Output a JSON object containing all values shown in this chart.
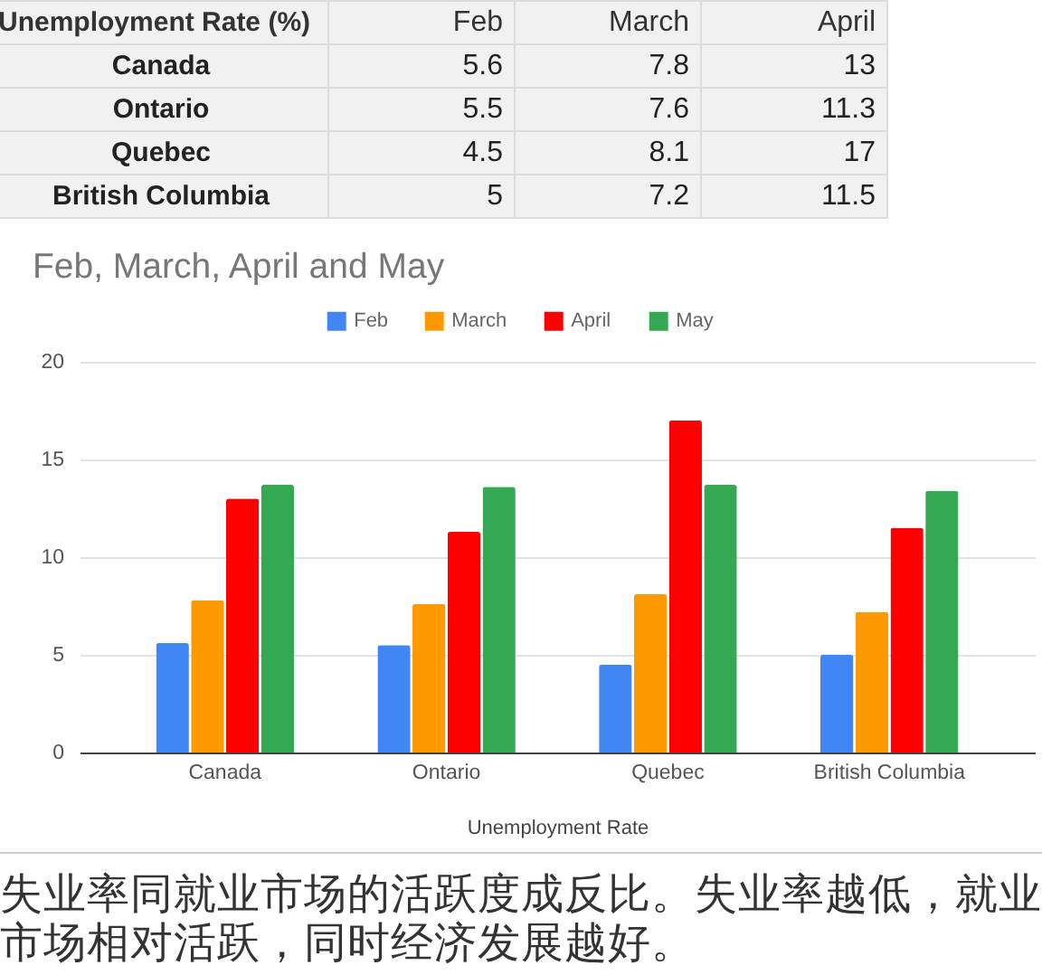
{
  "chart_data": [
    {
      "type": "other",
      "title": "Unemployment Rate (%)",
      "categories": [
        "Canada",
        "Ontario",
        "Quebec",
        "British Columbia"
      ],
      "series": [
        {
          "name": "Feb",
          "values": [
            5.6,
            5.5,
            4.5,
            5
          ]
        },
        {
          "name": "March",
          "values": [
            7.8,
            7.6,
            8.1,
            7.2
          ]
        },
        {
          "name": "April",
          "values": [
            13,
            11.3,
            17,
            11.5
          ]
        }
      ],
      "data_labels": true
    },
    {
      "type": "bar",
      "title": "Feb, March, April and May",
      "xlabel": "Unemployment Rate",
      "categories": [
        "Canada",
        "Ontario",
        "Quebec",
        "British Columbia"
      ],
      "series": [
        {
          "name": "Feb",
          "color": "#4285f4",
          "values": [
            5.6,
            5.5,
            4.5,
            5
          ]
        },
        {
          "name": "March",
          "color": "#ff9900",
          "values": [
            7.8,
            7.6,
            8.1,
            7.2
          ]
        },
        {
          "name": "April",
          "color": "#ff0000",
          "values": [
            13,
            11.3,
            17,
            11.5
          ]
        },
        {
          "name": "May",
          "color": "#34a853",
          "values": [
            13.7,
            13.6,
            13.7,
            13.4
          ]
        }
      ],
      "ylim": [
        0,
        20
      ],
      "yticks": [
        0,
        5,
        10,
        15,
        20
      ],
      "grid": "y",
      "legend": "top",
      "annotations": [
        "失业率同就业市场的活跃度成反比。失业率越低，就业市场相对活跃，同时经济发展越好。"
      ]
    }
  ]
}
